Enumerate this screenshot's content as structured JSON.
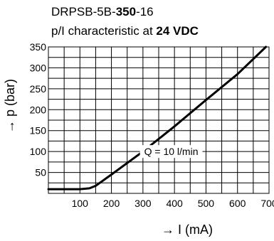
{
  "chart_data": {
    "type": "line",
    "title_line1": {
      "prefix": "DRPSB-5B-",
      "bold": "350",
      "suffix": "-16"
    },
    "title_line2": {
      "prefix": "p/I characteristic at ",
      "bold": "24 VDC"
    },
    "xlabel": "→ I (mA)",
    "ylabel": "→ p (bar)",
    "xlim": [
      0,
      700
    ],
    "ylim": [
      0,
      350
    ],
    "x_ticks": [
      100,
      200,
      300,
      400,
      500,
      600,
      700
    ],
    "y_ticks": [
      50,
      100,
      150,
      200,
      250,
      300,
      350
    ],
    "grid": true,
    "series": [
      {
        "x": [
          0,
          100,
          130,
          150,
          200,
          300,
          400,
          500,
          600,
          690
        ],
        "y": [
          10,
          10,
          12,
          18,
          45,
          100,
          160,
          223,
          285,
          350
        ]
      }
    ],
    "annotation": {
      "text": "Q = 10 l/min",
      "x": 340,
      "y": 100
    }
  }
}
